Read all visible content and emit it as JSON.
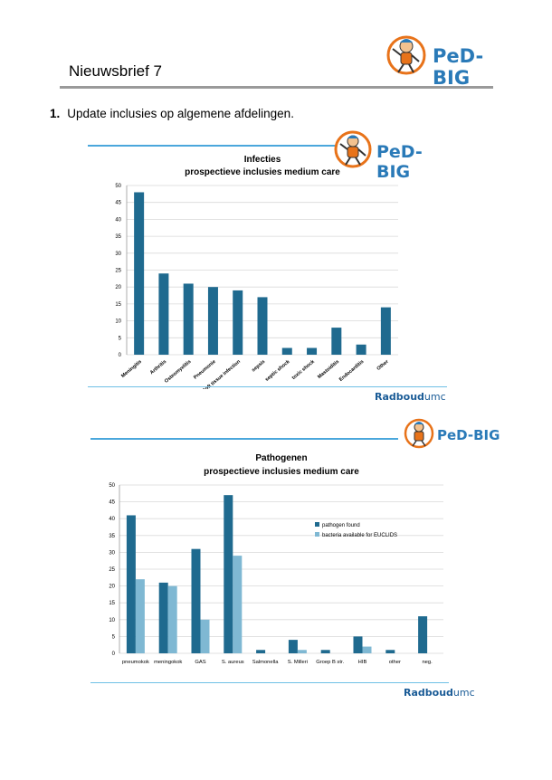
{
  "header": {
    "title": "Nieuwsbrief 7",
    "logo_text": "PeD-BIG"
  },
  "section": {
    "number": "1.",
    "heading": "Update inclusies op algemene afdelingen."
  },
  "footer_logo": {
    "brand": "Radboud",
    "suffix": "umc"
  },
  "colors": {
    "dark_bar": "#1f6a8f",
    "light_bar": "#7fb8d3",
    "accent_line": "#4aa7dc",
    "logo_blue": "#2a7ab8"
  },
  "chart_data": [
    {
      "type": "bar",
      "title": "Infecties",
      "subtitle": "prospectieve inclusies medium care",
      "categories": [
        "Meningitis",
        "Arthritis",
        "Osteomyelitis",
        "Pneumonie",
        "Soft tissue infection",
        "sepsis",
        "septic shock",
        "toxic shock",
        "Mastoiditis",
        "Endocarditis",
        "Other"
      ],
      "values": [
        48,
        24,
        21,
        20,
        19,
        17,
        2,
        2,
        8,
        3,
        14
      ],
      "ylim": [
        0,
        50
      ],
      "yticks": [
        0,
        5,
        10,
        15,
        20,
        25,
        30,
        35,
        40,
        45,
        50
      ],
      "grid": true,
      "logo_text": "PeD-BIG"
    },
    {
      "type": "bar",
      "title": "Pathogenen",
      "subtitle": "prospectieve inclusies medium care",
      "categories": [
        "pneumokok",
        "meningokok",
        "GAS",
        "S. aureus",
        "Salmonella",
        "S. Milleri",
        "Groep B str.",
        "HIB",
        "other",
        "neg."
      ],
      "series": [
        {
          "name": "pathogen found",
          "values": [
            41,
            21,
            31,
            47,
            1,
            4,
            1,
            5,
            1,
            11
          ]
        },
        {
          "name": "bacteria available for EUCLIDS",
          "values": [
            22,
            20,
            10,
            29,
            0,
            1,
            0,
            2,
            0,
            0
          ]
        }
      ],
      "ylim": [
        0,
        50
      ],
      "yticks": [
        0,
        5,
        10,
        15,
        20,
        25,
        30,
        35,
        40,
        45,
        50
      ],
      "grid": true,
      "legend": "right",
      "logo_text": "PeD-BIG"
    }
  ]
}
